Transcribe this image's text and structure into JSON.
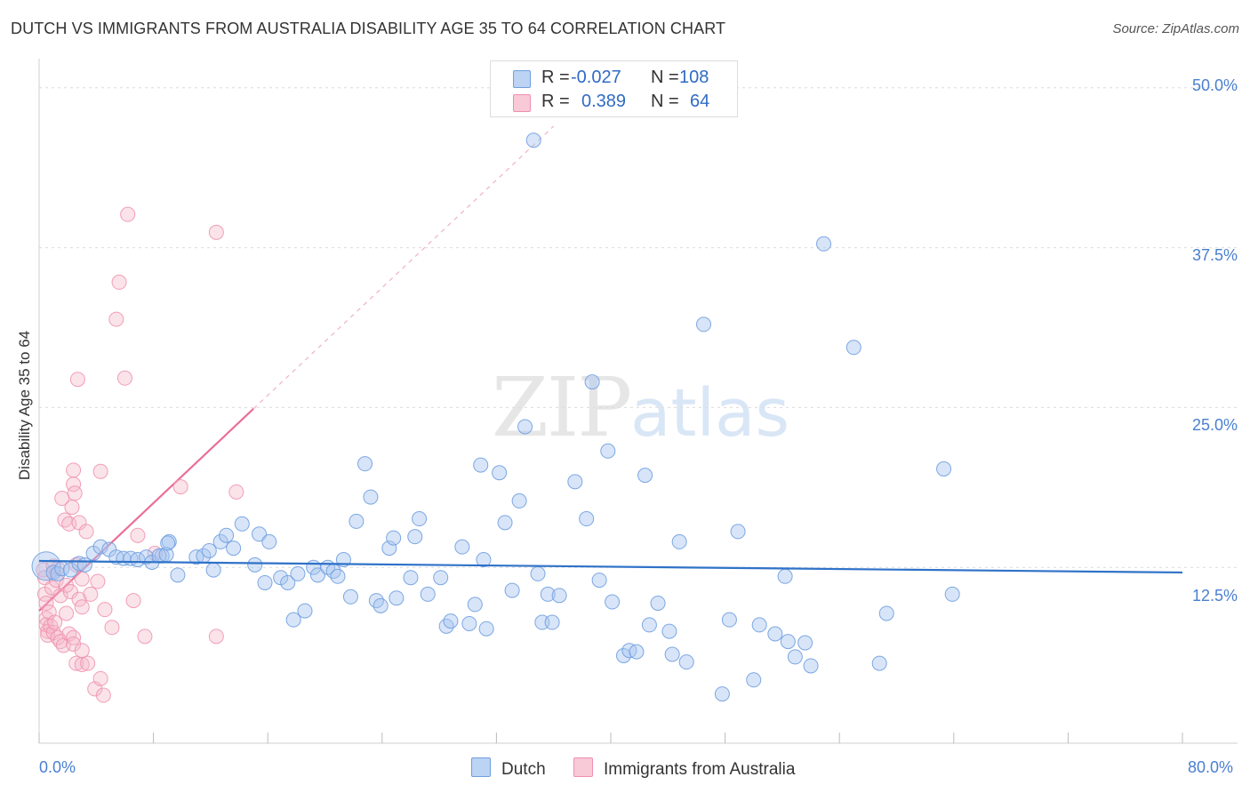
{
  "header": {
    "title": "DUTCH VS IMMIGRANTS FROM AUSTRALIA DISABILITY AGE 35 TO 64 CORRELATION CHART",
    "source": "Source: ZipAtlas.com"
  },
  "watermark": {
    "zip": "ZIP",
    "atlas": "atlas"
  },
  "legend": {
    "r_label": "R =",
    "n_label": "N =",
    "rows": [
      {
        "name": "Dutch",
        "r": "-0.027",
        "n": "108"
      },
      {
        "name": "Immigrants from Australia",
        "r": "0.389",
        "n": "64"
      }
    ]
  },
  "colors": {
    "dutch_fill": "#a9c6ef",
    "dutch_stroke": "#6f9fe0",
    "dutch_line": "#2f72c8",
    "aus_fill": "#f6b8cb",
    "aus_stroke": "#ee8fae",
    "aus_line": "#ea6e98",
    "tick_text": "#4a7fd0"
  },
  "chart_data": {
    "type": "scatter",
    "title": "DUTCH VS IMMIGRANTS FROM AUSTRALIA DISABILITY AGE 35 TO 64 CORRELATION CHART",
    "xlabel": "",
    "ylabel": "Disability Age 35 to 64",
    "xlim": [
      0,
      80
    ],
    "ylim": [
      0,
      52
    ],
    "x_tick_labels": [
      "0.0%",
      "80.0%"
    ],
    "y_ticks": [
      12.5,
      25.0,
      37.5,
      50.0
    ],
    "y_tick_labels": [
      "12.5%",
      "25.0%",
      "37.5%",
      "50.0%"
    ],
    "grid": "horizontal dashed",
    "legend_placement": "top-center",
    "series": [
      {
        "name": "Dutch",
        "trend": {
          "x": [
            0,
            80
          ],
          "y": [
            13.0,
            12.1
          ]
        },
        "points": [
          [
            0.5,
            12.6
          ],
          [
            1.0,
            12.1
          ],
          [
            1.3,
            12.0
          ],
          [
            1.6,
            12.4
          ],
          [
            2.2,
            12.3
          ],
          [
            2.8,
            12.8
          ],
          [
            3.2,
            12.7
          ],
          [
            3.8,
            13.6
          ],
          [
            4.3,
            14.1
          ],
          [
            4.9,
            13.9
          ],
          [
            5.4,
            13.3
          ],
          [
            5.9,
            13.2
          ],
          [
            6.4,
            13.2
          ],
          [
            6.9,
            13.1
          ],
          [
            7.5,
            13.3
          ],
          [
            7.9,
            12.9
          ],
          [
            8.6,
            13.4
          ],
          [
            8.4,
            13.4
          ],
          [
            9.1,
            14.5
          ],
          [
            8.9,
            13.5
          ],
          [
            9.0,
            14.4
          ],
          [
            9.7,
            11.9
          ],
          [
            11.0,
            13.3
          ],
          [
            11.5,
            13.4
          ],
          [
            11.9,
            13.8
          ],
          [
            12.2,
            12.3
          ],
          [
            12.7,
            14.5
          ],
          [
            13.1,
            15.0
          ],
          [
            13.6,
            14.0
          ],
          [
            14.2,
            15.9
          ],
          [
            15.1,
            12.7
          ],
          [
            15.4,
            15.1
          ],
          [
            15.8,
            11.3
          ],
          [
            16.1,
            14.5
          ],
          [
            16.9,
            11.7
          ],
          [
            17.4,
            11.3
          ],
          [
            17.8,
            8.4
          ],
          [
            18.1,
            12.0
          ],
          [
            18.6,
            9.1
          ],
          [
            19.2,
            12.5
          ],
          [
            19.5,
            11.9
          ],
          [
            20.2,
            12.5
          ],
          [
            20.6,
            12.2
          ],
          [
            20.9,
            11.8
          ],
          [
            21.3,
            13.1
          ],
          [
            21.8,
            10.2
          ],
          [
            22.2,
            16.1
          ],
          [
            22.8,
            20.6
          ],
          [
            23.2,
            18.0
          ],
          [
            23.6,
            9.9
          ],
          [
            23.9,
            9.5
          ],
          [
            24.5,
            14.0
          ],
          [
            24.8,
            14.8
          ],
          [
            25.0,
            10.1
          ],
          [
            26.0,
            11.7
          ],
          [
            26.3,
            14.9
          ],
          [
            26.6,
            16.3
          ],
          [
            27.2,
            10.4
          ],
          [
            28.1,
            11.7
          ],
          [
            28.5,
            7.9
          ],
          [
            28.8,
            8.3
          ],
          [
            29.6,
            14.1
          ],
          [
            30.1,
            8.1
          ],
          [
            30.5,
            9.6
          ],
          [
            30.9,
            20.5
          ],
          [
            31.1,
            13.1
          ],
          [
            31.3,
            7.7
          ],
          [
            32.2,
            19.9
          ],
          [
            32.6,
            16.0
          ],
          [
            33.1,
            10.7
          ],
          [
            33.6,
            17.7
          ],
          [
            34.0,
            23.5
          ],
          [
            34.9,
            12.0
          ],
          [
            35.2,
            8.2
          ],
          [
            35.6,
            10.4
          ],
          [
            35.9,
            8.2
          ],
          [
            36.4,
            10.3
          ],
          [
            37.5,
            19.2
          ],
          [
            38.3,
            16.3
          ],
          [
            38.7,
            27.0
          ],
          [
            39.2,
            11.5
          ],
          [
            39.8,
            21.6
          ],
          [
            40.1,
            9.8
          ],
          [
            40.9,
            5.6
          ],
          [
            41.3,
            6.0
          ],
          [
            41.8,
            5.9
          ],
          [
            42.4,
            19.7
          ],
          [
            42.7,
            8.0
          ],
          [
            43.3,
            9.7
          ],
          [
            44.1,
            7.5
          ],
          [
            44.3,
            5.7
          ],
          [
            44.8,
            14.5
          ],
          [
            45.3,
            5.1
          ],
          [
            46.5,
            31.5
          ],
          [
            47.8,
            2.6
          ],
          [
            48.3,
            8.4
          ],
          [
            48.9,
            15.3
          ],
          [
            50.0,
            3.7
          ],
          [
            50.4,
            8.0
          ],
          [
            51.5,
            7.3
          ],
          [
            52.2,
            11.8
          ],
          [
            52.4,
            6.7
          ],
          [
            52.9,
            5.5
          ],
          [
            53.6,
            6.6
          ],
          [
            54.0,
            4.8
          ],
          [
            54.9,
            37.8
          ],
          [
            57.0,
            29.7
          ],
          [
            58.8,
            5.0
          ],
          [
            59.3,
            8.9
          ],
          [
            63.3,
            20.2
          ],
          [
            63.9,
            10.4
          ],
          [
            34.6,
            45.9
          ]
        ]
      },
      {
        "name": "Immigrants from Australia",
        "trend": {
          "x": [
            0,
            15
          ],
          "y": [
            9.1,
            24.9
          ]
        },
        "trend_extension": {
          "x": [
            15,
            36
          ],
          "y": [
            24.9,
            47.0
          ]
        },
        "points": [
          [
            0.3,
            12.3
          ],
          [
            0.4,
            11.7
          ],
          [
            0.4,
            10.4
          ],
          [
            0.5,
            9.7
          ],
          [
            0.5,
            8.5
          ],
          [
            0.5,
            8.0
          ],
          [
            0.6,
            7.5
          ],
          [
            0.6,
            7.2
          ],
          [
            0.7,
            9.0
          ],
          [
            0.8,
            7.9
          ],
          [
            0.9,
            10.9
          ],
          [
            1.0,
            12.6
          ],
          [
            1.0,
            7.4
          ],
          [
            1.1,
            8.2
          ],
          [
            1.2,
            11.5
          ],
          [
            1.3,
            12.4
          ],
          [
            1.3,
            7.0
          ],
          [
            1.5,
            10.3
          ],
          [
            1.5,
            6.7
          ],
          [
            1.6,
            17.9
          ],
          [
            1.7,
            6.4
          ],
          [
            1.8,
            16.2
          ],
          [
            1.9,
            11.1
          ],
          [
            1.9,
            8.9
          ],
          [
            2.1,
            7.3
          ],
          [
            2.1,
            15.9
          ],
          [
            2.2,
            10.6
          ],
          [
            2.4,
            7.0
          ],
          [
            2.4,
            6.5
          ],
          [
            2.3,
            17.2
          ],
          [
            2.4,
            20.1
          ],
          [
            2.4,
            19.0
          ],
          [
            2.5,
            18.3
          ],
          [
            2.6,
            5.0
          ],
          [
            2.6,
            12.7
          ],
          [
            2.7,
            27.2
          ],
          [
            2.8,
            10.0
          ],
          [
            2.8,
            16.0
          ],
          [
            3.0,
            11.6
          ],
          [
            3.0,
            6.0
          ],
          [
            3.0,
            9.4
          ],
          [
            3.0,
            4.9
          ],
          [
            3.3,
            15.3
          ],
          [
            3.4,
            5.0
          ],
          [
            3.6,
            10.4
          ],
          [
            3.9,
            3.0
          ],
          [
            4.1,
            11.4
          ],
          [
            4.3,
            20.0
          ],
          [
            4.3,
            3.8
          ],
          [
            4.5,
            2.5
          ],
          [
            4.6,
            9.2
          ],
          [
            5.1,
            7.8
          ],
          [
            5.6,
            34.8
          ],
          [
            5.4,
            31.9
          ],
          [
            6.0,
            27.3
          ],
          [
            6.2,
            40.1
          ],
          [
            6.6,
            9.9
          ],
          [
            6.9,
            15.0
          ],
          [
            7.4,
            7.1
          ],
          [
            8.1,
            13.6
          ],
          [
            9.9,
            18.8
          ],
          [
            12.4,
            7.1
          ],
          [
            12.4,
            38.7
          ],
          [
            13.8,
            18.4
          ]
        ]
      }
    ]
  }
}
